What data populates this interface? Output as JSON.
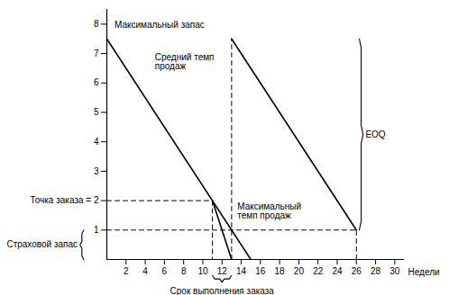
{
  "chart_data": {
    "type": "line",
    "x_label": "Недели",
    "xlim": [
      0,
      31
    ],
    "ylim": [
      0,
      8.5
    ],
    "xticks": [
      2,
      4,
      6,
      8,
      10,
      12,
      14,
      16,
      18,
      20,
      22,
      24,
      26,
      28,
      30
    ],
    "yticks": [
      1,
      {
        "value": 2,
        "label": "Точка заказа = 2"
      },
      3,
      4,
      5,
      6,
      7,
      8
    ],
    "grid": false,
    "series": [
      {
        "x": [
          0,
          15
        ],
        "values": [
          7.5,
          0
        ],
        "color": "#000000",
        "line_style": "solid"
      },
      {
        "x": [
          13,
          26
        ],
        "values": [
          7.5,
          1
        ],
        "color": "#000000",
        "line_style": "solid"
      },
      {
        "x": [
          11,
          13
        ],
        "values": [
          2,
          0
        ],
        "color": "#000000",
        "line_style": "solid"
      },
      {
        "x": [
          0,
          11
        ],
        "values": [
          2,
          2
        ],
        "color": "#000000",
        "line_style": "dashed"
      },
      {
        "x": [
          11,
          11
        ],
        "values": [
          2,
          0
        ],
        "color": "#000000",
        "line_style": "dashed"
      },
      {
        "x": [
          0,
          26
        ],
        "values": [
          1,
          1
        ],
        "color": "#000000",
        "line_style": "dashed"
      },
      {
        "x": [
          13,
          13
        ],
        "values": [
          0,
          7.5
        ],
        "color": "#000000",
        "line_style": "dashed"
      },
      {
        "x": [
          26,
          26
        ],
        "values": [
          0,
          1
        ],
        "color": "#000000",
        "line_style": "dashed"
      }
    ],
    "annotations": [
      {
        "text": "Максимальный запас",
        "x": 0.8,
        "y": 8.1
      },
      {
        "text": "Средний темп\nпродаж",
        "x": 5,
        "y": 7
      },
      {
        "text": "Максимальный\nтемп продаж",
        "x": 13.6,
        "y": 1.9
      }
    ],
    "braces": [
      {
        "text": "Страховой запас",
        "axis": "y",
        "from": 0,
        "to": 1
      },
      {
        "text": "EOQ",
        "axis": "y",
        "at": 26,
        "from": 1,
        "to": 7.5
      },
      {
        "text": "Срок выполнения заказа",
        "axis": "x",
        "from": 11,
        "to": 13
      }
    ]
  }
}
